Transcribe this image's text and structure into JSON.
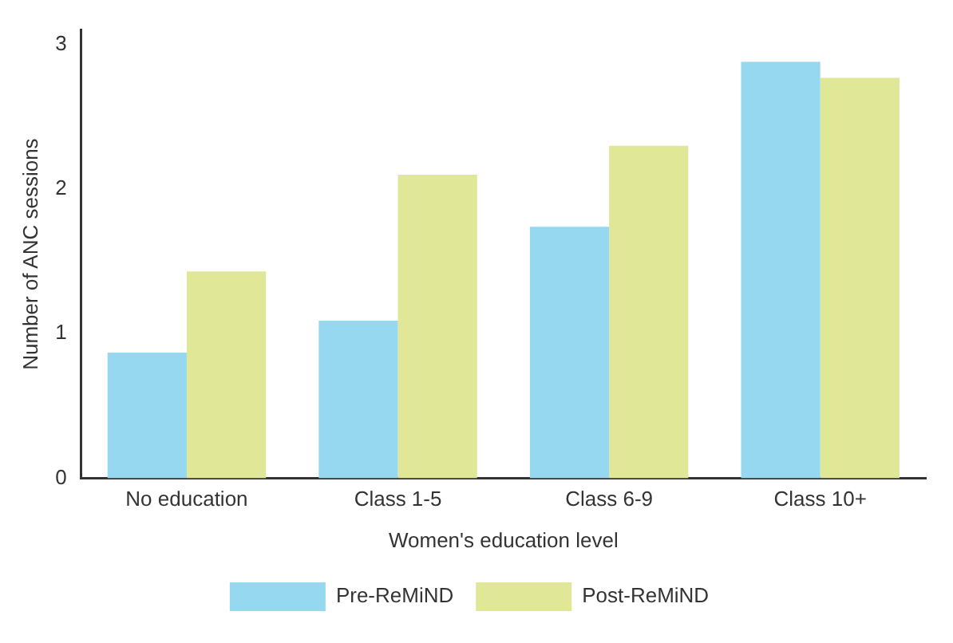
{
  "chart_data": {
    "type": "bar",
    "xlabel": "Women's education level",
    "ylabel": "Number of ANC sessions",
    "categories": [
      "No education",
      "Class 1-5",
      "Class 6-9",
      "Class 10+"
    ],
    "series": [
      {
        "name": "Pre-ReMiND",
        "color": "#97d8f1",
        "values": [
          0.87,
          1.09,
          1.74,
          2.88
        ]
      },
      {
        "name": "Post-ReMiND",
        "color": "#e0e797",
        "values": [
          1.43,
          2.1,
          2.3,
          2.77
        ]
      }
    ],
    "ylim": [
      0,
      3.1
    ],
    "yticks": [
      0,
      1,
      2,
      3
    ],
    "grid": false,
    "legend": "bottom"
  }
}
